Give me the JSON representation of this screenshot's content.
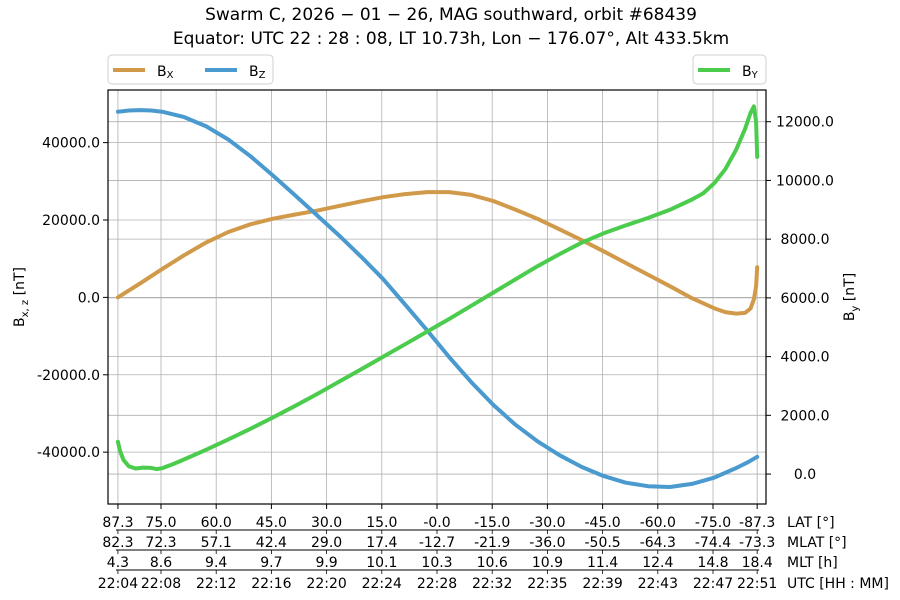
{
  "chart_data": {
    "type": "line",
    "title": "Swarm C,  2026 − 01 − 26,  MAG southward,  orbit #68439",
    "subtitle": "Equator:  UTC 22 : 28 : 08,  LT 10.73h,  Lon  − 176.07°,  Alt 433.5km",
    "xlabel_rows": [
      {
        "label": "LAT [°]",
        "ticks": [
          "87.3",
          "75.0",
          "60.0",
          "45.0",
          "30.0",
          "15.0",
          "-0.0",
          "-15.0",
          "-30.0",
          "-45.0",
          "-60.0",
          "-75.0",
          "-87.3"
        ]
      },
      {
        "label": "MLAT [°]",
        "ticks": [
          "82.3",
          "72.3",
          "57.1",
          "42.4",
          "29.0",
          "17.4",
          "-12.7",
          "-21.9",
          "-36.0",
          "-50.5",
          "-64.3",
          "-74.4",
          "-73.3"
        ]
      },
      {
        "label": "MLT [h]",
        "ticks": [
          "4.3",
          "8.6",
          "9.4",
          "9.7",
          "9.9",
          "10.1",
          "10.3",
          "10.6",
          "10.9",
          "11.4",
          "12.4",
          "14.8",
          "18.4"
        ]
      },
      {
        "label": "UTC [HH : MM]",
        "ticks": [
          "22:04",
          "22:08",
          "22:12",
          "22:16",
          "22:20",
          "22:24",
          "22:28",
          "22:32",
          "22:35",
          "22:39",
          "22:43",
          "22:47",
          "22:51"
        ]
      }
    ],
    "x_tick_minutes": [
      0.0,
      3.9,
      8.9,
      13.9,
      18.9,
      23.9,
      28.9,
      33.9,
      38.9,
      43.9,
      48.9,
      53.9,
      57.9
    ],
    "xlim": [
      -0.9,
      58.7
    ],
    "ylabel_left": "B_{x, z} [nT]",
    "ylabel_right": "B_y [nT]",
    "ylim_left": [
      -53400,
      53600
    ],
    "ylim_right": [
      -1020,
      13080
    ],
    "yticks_left": [
      -40000,
      -20000,
      0,
      20000,
      40000
    ],
    "yticks_left_labels": [
      "-40000.0",
      "-20000.0",
      "0.0",
      "20000.0",
      "40000.0"
    ],
    "yticks_right": [
      0,
      2000,
      4000,
      6000,
      8000,
      10000,
      12000
    ],
    "yticks_right_labels": [
      "0.0",
      "2000.0",
      "4000.0",
      "6000.0",
      "8000.0",
      "10000.0",
      "12000.0"
    ],
    "grid": true,
    "legend_left": [
      {
        "name": "B",
        "sub": "X",
        "color": "#d19a4a"
      },
      {
        "name": "B",
        "sub": "Z",
        "color": "#4a9acf"
      }
    ],
    "legend_right": [
      {
        "name": "B",
        "sub": "Y",
        "color": "#4ccc4c"
      }
    ],
    "series": [
      {
        "name": "B_X",
        "axis": "left",
        "color": "#d19a4a",
        "x": [
          0,
          2,
          4,
          6,
          8,
          10,
          12,
          14,
          16,
          18,
          20,
          22,
          24,
          26,
          28,
          30,
          32,
          34,
          36,
          38,
          40,
          42,
          44,
          46,
          48,
          50,
          52,
          54,
          55,
          56,
          56.8,
          57.3,
          57.6,
          57.8,
          57.9
        ],
        "y": [
          0,
          3600,
          7300,
          10900,
          14200,
          16900,
          18900,
          20300,
          21400,
          22400,
          23600,
          24800,
          25900,
          26700,
          27200,
          27200,
          26500,
          24900,
          22700,
          20300,
          17600,
          14800,
          11900,
          8900,
          5900,
          2900,
          -200,
          -2800,
          -3800,
          -4200,
          -4000,
          -2900,
          -500,
          2900,
          7800
        ]
      },
      {
        "name": "B_Z",
        "axis": "left",
        "color": "#4a9acf",
        "x": [
          0,
          1,
          2,
          3,
          4,
          6,
          8,
          10,
          12,
          14,
          16,
          18,
          20,
          22,
          24,
          26,
          28,
          30,
          32,
          34,
          36,
          38,
          40,
          42,
          44,
          46,
          48,
          50,
          52,
          54,
          56,
          57,
          57.9
        ],
        "y": [
          48000,
          48300,
          48400,
          48300,
          48000,
          46600,
          44200,
          40800,
          36500,
          31600,
          26500,
          21300,
          16100,
          10600,
          4800,
          -1800,
          -8500,
          -15400,
          -21900,
          -27800,
          -32900,
          -37200,
          -40800,
          -43800,
          -46200,
          -47900,
          -48800,
          -49000,
          -48200,
          -46600,
          -44100,
          -42700,
          -41200
        ]
      },
      {
        "name": "B_Y",
        "axis": "right",
        "color": "#4ccc4c",
        "x": [
          0,
          0.2,
          0.5,
          1,
          1.6,
          2.3,
          3,
          3.5,
          4,
          4.5,
          5,
          6,
          8,
          10,
          12,
          14,
          16,
          18,
          20,
          22,
          24,
          26,
          28,
          30,
          32,
          34,
          36,
          38,
          40,
          42,
          44,
          46,
          48,
          50,
          52,
          53,
          54,
          55,
          56,
          56.8,
          57.3,
          57.6,
          57.8,
          57.9
        ],
        "y": [
          1100,
          780,
          480,
          260,
          190,
          220,
          210,
          170,
          200,
          270,
          340,
          500,
          830,
          1180,
          1540,
          1920,
          2310,
          2720,
          3140,
          3560,
          3990,
          4420,
          4850,
          5280,
          5730,
          6180,
          6630,
          7080,
          7490,
          7880,
          8200,
          8470,
          8720,
          9000,
          9350,
          9560,
          9900,
          10380,
          11050,
          11750,
          12300,
          12520,
          12000,
          10800
        ]
      }
    ]
  }
}
